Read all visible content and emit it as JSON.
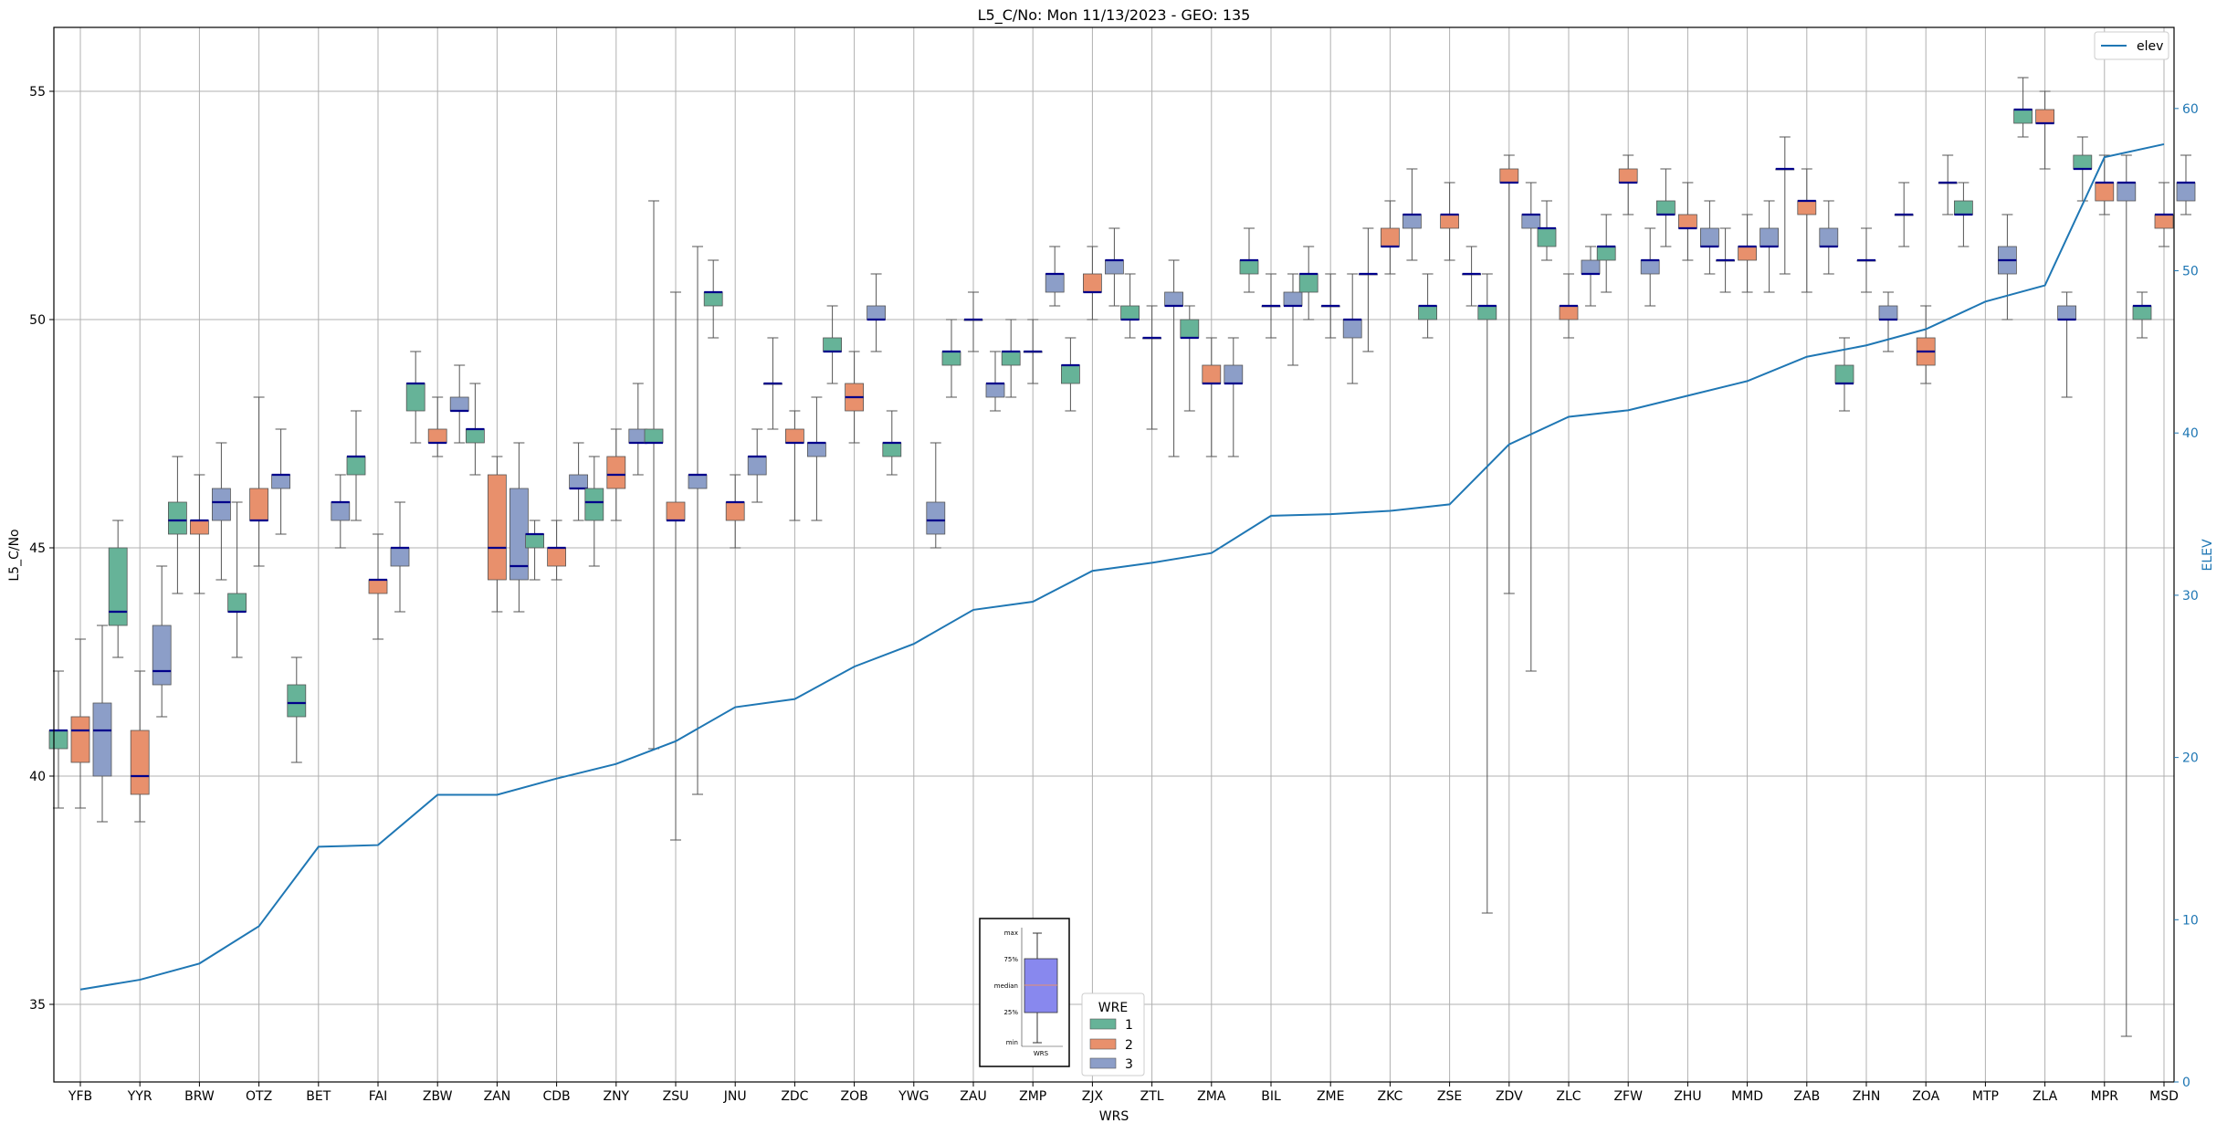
{
  "chart_data": {
    "type": "box",
    "title": "L5_C/No: Mon 11/13/2023 - GEO: 135",
    "xlabel": "WRS",
    "ylabel": "L5_C/No",
    "y2label": "ELEV",
    "ylim": [
      33.3,
      56.4
    ],
    "y2lim": [
      0,
      65
    ],
    "yticks": [
      35,
      40,
      45,
      50,
      55
    ],
    "y2ticks": [
      0,
      10,
      20,
      30,
      40,
      50,
      60
    ],
    "grid": true,
    "legend": {
      "title": "WRE",
      "placement": "lower-center",
      "entries": [
        "1",
        "2",
        "3"
      ]
    },
    "line_legend": {
      "label": "elev",
      "placement": "top-right"
    },
    "colors": {
      "wre1": "#66b398",
      "wre2": "#e8906c",
      "wre3": "#8c9ec8",
      "median": "#00008b",
      "elev": "#1f77b4",
      "grid": "#b0b0b0",
      "outlier_whisker": "#e8453c"
    },
    "inset_legend": {
      "labels": [
        "max",
        "75%",
        "median",
        "25%",
        "min"
      ],
      "xlabel": "WRS",
      "box_color": "#8888ee"
    },
    "categories": [
      "YFB",
      "YYR",
      "BRW",
      "OTZ",
      "BET",
      "FAI",
      "ZBW",
      "ZAN",
      "CDB",
      "ZNY",
      "ZSU",
      "JNU",
      "ZDC",
      "ZOB",
      "YWG",
      "ZAU",
      "ZMP",
      "ZJX",
      "ZTL",
      "ZMA",
      "BIL",
      "ZME",
      "ZKC",
      "ZSE",
      "ZDV",
      "ZLC",
      "ZFW",
      "ZHU",
      "MMD",
      "ZAB",
      "ZHN",
      "ZOA",
      "MTP",
      "ZLA",
      "MPR",
      "MSD"
    ],
    "elev": [
      5.7,
      6.3,
      7.3,
      9.6,
      14.5,
      14.6,
      17.7,
      17.7,
      18.7,
      19.6,
      21.0,
      23.1,
      23.6,
      25.6,
      27.0,
      29.1,
      29.6,
      31.5,
      32.0,
      32.6,
      34.9,
      35.0,
      35.2,
      35.6,
      39.3,
      41.0,
      41.4,
      42.3,
      43.2,
      44.7,
      45.4,
      46.4,
      48.1,
      49.1,
      57.0,
      57.8
    ],
    "boxes": [
      {
        "station": "YFB",
        "wre": 1,
        "min": 39.3,
        "q1": 40.6,
        "median": 41.0,
        "q3": 41.0,
        "max": 42.3
      },
      {
        "station": "YFB",
        "wre": 2,
        "min": 39.3,
        "q1": 40.3,
        "median": 41.0,
        "q3": 41.3,
        "max": 43.0
      },
      {
        "station": "YFB",
        "wre": 3,
        "min": 39.0,
        "q1": 40.0,
        "median": 41.0,
        "q3": 41.6,
        "max": 43.3
      },
      {
        "station": "YYR",
        "wre": 1,
        "min": 42.6,
        "q1": 43.3,
        "median": 43.6,
        "q3": 45.0,
        "max": 45.6
      },
      {
        "station": "YYR",
        "wre": 2,
        "min": 39.0,
        "q1": 39.6,
        "median": 40.0,
        "q3": 41.0,
        "max": 42.3
      },
      {
        "station": "YYR",
        "wre": 3,
        "min": 41.3,
        "q1": 42.0,
        "median": 42.3,
        "q3": 43.3,
        "max": 44.6
      },
      {
        "station": "BRW",
        "wre": 1,
        "min": 44.0,
        "q1": 45.3,
        "median": 45.6,
        "q3": 46.0,
        "max": 47.0
      },
      {
        "station": "BRW",
        "wre": 2,
        "min": 44.0,
        "q1": 45.3,
        "median": 45.6,
        "q3": 45.6,
        "max": 46.6
      },
      {
        "station": "BRW",
        "wre": 3,
        "min": 44.3,
        "q1": 45.6,
        "median": 46.0,
        "q3": 46.3,
        "max": 47.3
      },
      {
        "station": "OTZ",
        "wre": 1,
        "min": 42.6,
        "q1": 43.6,
        "median": 43.6,
        "q3": 44.0,
        "max": 46.0
      },
      {
        "station": "OTZ",
        "wre": 2,
        "min": 44.6,
        "q1": 45.6,
        "median": 45.6,
        "q3": 46.3,
        "max": 48.3
      },
      {
        "station": "OTZ",
        "wre": 3,
        "min": 45.3,
        "q1": 46.3,
        "median": 46.6,
        "q3": 46.6,
        "max": 47.6
      },
      {
        "station": "BET",
        "wre": 1,
        "min": 40.3,
        "q1": 41.3,
        "median": 41.6,
        "q3": 42.0,
        "max": 42.6
      },
      {
        "station": "BET",
        "wre": 3,
        "min": 45.0,
        "q1": 45.6,
        "median": 46.0,
        "q3": 46.0,
        "max": 46.6
      },
      {
        "station": "FAI",
        "wre": 1,
        "min": 45.6,
        "q1": 46.6,
        "median": 47.0,
        "q3": 47.0,
        "max": 48.0
      },
      {
        "station": "FAI",
        "wre": 2,
        "min": 43.0,
        "q1": 44.0,
        "median": 44.3,
        "q3": 44.3,
        "max": 45.3
      },
      {
        "station": "FAI",
        "wre": 3,
        "min": 43.6,
        "q1": 44.6,
        "median": 45.0,
        "q3": 45.0,
        "max": 46.0
      },
      {
        "station": "ZBW",
        "wre": 1,
        "min": 47.3,
        "q1": 48.0,
        "median": 48.6,
        "q3": 48.6,
        "max": 49.3
      },
      {
        "station": "ZBW",
        "wre": 2,
        "min": 47.0,
        "q1": 47.3,
        "median": 47.3,
        "q3": 47.6,
        "max": 48.3
      },
      {
        "station": "ZBW",
        "wre": 3,
        "min": 47.3,
        "q1": 48.0,
        "median": 48.0,
        "q3": 48.3,
        "max": 49.0
      },
      {
        "station": "ZAN",
        "wre": 1,
        "min": 46.6,
        "q1": 47.3,
        "median": 47.6,
        "q3": 47.6,
        "max": 48.6
      },
      {
        "station": "ZAN",
        "wre": 2,
        "min": 43.6,
        "q1": 44.3,
        "median": 45.0,
        "q3": 46.6,
        "max": 47.0
      },
      {
        "station": "ZAN",
        "wre": 3,
        "min": 43.6,
        "q1": 44.3,
        "median": 44.6,
        "q3": 46.3,
        "max": 47.3
      },
      {
        "station": "CDB",
        "wre": 1,
        "min": 44.3,
        "q1": 45.0,
        "median": 45.3,
        "q3": 45.3,
        "max": 45.6
      },
      {
        "station": "CDB",
        "wre": 2,
        "min": 44.3,
        "q1": 44.6,
        "median": 45.0,
        "q3": 45.0,
        "max": 45.6
      },
      {
        "station": "CDB",
        "wre": 3,
        "min": 45.6,
        "q1": 46.3,
        "median": 46.3,
        "q3": 46.6,
        "max": 47.3
      },
      {
        "station": "ZNY",
        "wre": 1,
        "min": 44.6,
        "q1": 45.6,
        "median": 46.0,
        "q3": 46.3,
        "max": 47.0
      },
      {
        "station": "ZNY",
        "wre": 2,
        "min": 45.6,
        "q1": 46.3,
        "median": 46.6,
        "q3": 47.0,
        "max": 47.6
      },
      {
        "station": "ZNY",
        "wre": 3,
        "min": 46.6,
        "q1": 47.3,
        "median": 47.3,
        "q3": 47.6,
        "max": 48.6
      },
      {
        "station": "ZSU",
        "wre": 1,
        "min": 40.6,
        "q1": 47.3,
        "median": 47.3,
        "q3": 47.6,
        "max": 52.6
      },
      {
        "station": "ZSU",
        "wre": 2,
        "min": 38.6,
        "q1": 45.6,
        "median": 45.6,
        "q3": 46.0,
        "max": 50.6
      },
      {
        "station": "ZSU",
        "wre": 3,
        "min": 39.6,
        "q1": 46.3,
        "median": 46.6,
        "q3": 46.6,
        "max": 51.6
      },
      {
        "station": "JNU",
        "wre": 1,
        "min": 49.6,
        "q1": 50.3,
        "median": 50.6,
        "q3": 50.6,
        "max": 51.3
      },
      {
        "station": "JNU",
        "wre": 2,
        "min": 45.0,
        "q1": 45.6,
        "median": 46.0,
        "q3": 46.0,
        "max": 46.6
      },
      {
        "station": "JNU",
        "wre": 3,
        "min": 46.0,
        "q1": 46.6,
        "median": 47.0,
        "q3": 47.0,
        "max": 47.6
      },
      {
        "station": "ZDC",
        "wre": 1,
        "min": 47.6,
        "q1": 48.6,
        "median": 48.6,
        "q3": 48.6,
        "max": 49.6
      },
      {
        "station": "ZDC",
        "wre": 2,
        "min": 45.6,
        "q1": 47.3,
        "median": 47.3,
        "q3": 47.6,
        "max": 48.0
      },
      {
        "station": "ZDC",
        "wre": 3,
        "min": 45.6,
        "q1": 47.0,
        "median": 47.3,
        "q3": 47.3,
        "max": 48.3
      },
      {
        "station": "ZOB",
        "wre": 1,
        "min": 48.6,
        "q1": 49.3,
        "median": 49.3,
        "q3": 49.6,
        "max": 50.3
      },
      {
        "station": "ZOB",
        "wre": 2,
        "min": 47.3,
        "q1": 48.0,
        "median": 48.3,
        "q3": 48.6,
        "max": 49.3
      },
      {
        "station": "ZOB",
        "wre": 3,
        "min": 49.3,
        "q1": 50.0,
        "median": 50.0,
        "q3": 50.3,
        "max": 51.0
      },
      {
        "station": "YWG",
        "wre": 1,
        "min": 46.6,
        "q1": 47.0,
        "median": 47.3,
        "q3": 47.3,
        "max": 48.0
      },
      {
        "station": "YWG",
        "wre": 3,
        "min": 45.0,
        "q1": 45.3,
        "median": 45.6,
        "q3": 46.0,
        "max": 47.3
      },
      {
        "station": "ZAU",
        "wre": 1,
        "min": 48.3,
        "q1": 49.0,
        "median": 49.3,
        "q3": 49.3,
        "max": 50.0
      },
      {
        "station": "ZAU",
        "wre": 2,
        "min": 49.3,
        "q1": 50.0,
        "median": 50.0,
        "q3": 50.0,
        "max": 50.6
      },
      {
        "station": "ZAU",
        "wre": 3,
        "min": 48.0,
        "q1": 48.3,
        "median": 48.6,
        "q3": 48.6,
        "max": 49.3
      },
      {
        "station": "ZMP",
        "wre": 1,
        "min": 48.3,
        "q1": 49.0,
        "median": 49.3,
        "q3": 49.3,
        "max": 50.0
      },
      {
        "station": "ZMP",
        "wre": 2,
        "min": 48.6,
        "q1": 49.3,
        "median": 49.3,
        "q3": 49.3,
        "max": 50.0
      },
      {
        "station": "ZMP",
        "wre": 3,
        "min": 50.3,
        "q1": 50.6,
        "median": 51.0,
        "q3": 51.0,
        "max": 51.6
      },
      {
        "station": "ZJX",
        "wre": 1,
        "min": 48.0,
        "q1": 48.6,
        "median": 49.0,
        "q3": 49.0,
        "max": 49.6
      },
      {
        "station": "ZJX",
        "wre": 2,
        "min": 50.0,
        "q1": 50.6,
        "median": 50.6,
        "q3": 51.0,
        "max": 51.6
      },
      {
        "station": "ZJX",
        "wre": 3,
        "min": 50.3,
        "q1": 51.0,
        "median": 51.3,
        "q3": 51.3,
        "max": 52.0
      },
      {
        "station": "ZTL",
        "wre": 1,
        "min": 49.6,
        "q1": 50.0,
        "median": 50.0,
        "q3": 50.3,
        "max": 51.0
      },
      {
        "station": "ZTL",
        "wre": 2,
        "min": 47.6,
        "q1": 49.6,
        "median": 49.6,
        "q3": 49.6,
        "max": 50.3
      },
      {
        "station": "ZTL",
        "wre": 3,
        "min": 47.0,
        "q1": 50.3,
        "median": 50.3,
        "q3": 50.6,
        "max": 51.3
      },
      {
        "station": "ZMA",
        "wre": 1,
        "min": 48.0,
        "q1": 49.6,
        "median": 49.6,
        "q3": 50.0,
        "max": 50.3
      },
      {
        "station": "ZMA",
        "wre": 2,
        "min": 47.0,
        "q1": 48.6,
        "median": 48.6,
        "q3": 49.0,
        "max": 49.6
      },
      {
        "station": "ZMA",
        "wre": 3,
        "min": 47.0,
        "q1": 48.6,
        "median": 48.6,
        "q3": 49.0,
        "max": 49.6
      },
      {
        "station": "BIL",
        "wre": 1,
        "min": 50.6,
        "q1": 51.0,
        "median": 51.3,
        "q3": 51.3,
        "max": 52.0
      },
      {
        "station": "BIL",
        "wre": 2,
        "min": 49.6,
        "q1": 50.3,
        "median": 50.3,
        "q3": 50.3,
        "max": 51.0
      },
      {
        "station": "BIL",
        "wre": 3,
        "min": 49.0,
        "q1": 50.3,
        "median": 50.3,
        "q3": 50.6,
        "max": 51.0
      },
      {
        "station": "ZME",
        "wre": 1,
        "min": 50.0,
        "q1": 50.6,
        "median": 51.0,
        "q3": 51.0,
        "max": 51.6
      },
      {
        "station": "ZME",
        "wre": 2,
        "min": 49.6,
        "q1": 50.3,
        "median": 50.3,
        "q3": 50.3,
        "max": 51.0
      },
      {
        "station": "ZME",
        "wre": 3,
        "min": 48.6,
        "q1": 49.6,
        "median": 50.0,
        "q3": 50.0,
        "max": 51.0
      },
      {
        "station": "ZKC",
        "wre": 1,
        "min": 49.3,
        "q1": 51.0,
        "median": 51.0,
        "q3": 51.0,
        "max": 52.0
      },
      {
        "station": "ZKC",
        "wre": 2,
        "min": 51.0,
        "q1": 51.6,
        "median": 51.6,
        "q3": 52.0,
        "max": 52.6
      },
      {
        "station": "ZKC",
        "wre": 3,
        "min": 51.3,
        "q1": 52.0,
        "median": 52.3,
        "q3": 52.3,
        "max": 53.3
      },
      {
        "station": "ZSE",
        "wre": 1,
        "min": 49.6,
        "q1": 50.0,
        "median": 50.3,
        "q3": 50.3,
        "max": 51.0
      },
      {
        "station": "ZSE",
        "wre": 2,
        "min": 51.3,
        "q1": 52.0,
        "median": 52.3,
        "q3": 52.3,
        "max": 53.0
      },
      {
        "station": "ZSE",
        "wre": 3,
        "min": 50.3,
        "q1": 51.0,
        "median": 51.0,
        "q3": 51.0,
        "max": 51.6
      },
      {
        "station": "ZDV",
        "wre": 1,
        "min": 37.0,
        "q1": 50.0,
        "median": 50.3,
        "q3": 50.3,
        "max": 51.0
      },
      {
        "station": "ZDV",
        "wre": 2,
        "min": 44.0,
        "q1": 53.0,
        "median": 53.0,
        "q3": 53.3,
        "max": 53.6
      },
      {
        "station": "ZDV",
        "wre": 3,
        "min": 42.3,
        "q1": 52.0,
        "median": 52.3,
        "q3": 52.3,
        "max": 53.0
      },
      {
        "station": "ZLC",
        "wre": 1,
        "min": 51.3,
        "q1": 51.6,
        "median": 52.0,
        "q3": 52.0,
        "max": 52.6
      },
      {
        "station": "ZLC",
        "wre": 2,
        "min": 49.6,
        "q1": 50.0,
        "median": 50.3,
        "q3": 50.3,
        "max": 51.0
      },
      {
        "station": "ZLC",
        "wre": 3,
        "min": 50.3,
        "q1": 51.0,
        "median": 51.0,
        "q3": 51.3,
        "max": 51.6
      },
      {
        "station": "ZFW",
        "wre": 1,
        "min": 50.6,
        "q1": 51.3,
        "median": 51.6,
        "q3": 51.6,
        "max": 52.3
      },
      {
        "station": "ZFW",
        "wre": 2,
        "min": 52.3,
        "q1": 53.0,
        "median": 53.0,
        "q3": 53.3,
        "max": 53.6
      },
      {
        "station": "ZFW",
        "wre": 3,
        "min": 50.3,
        "q1": 51.0,
        "median": 51.3,
        "q3": 51.3,
        "max": 52.0
      },
      {
        "station": "ZHU",
        "wre": 1,
        "min": 51.6,
        "q1": 52.3,
        "median": 52.3,
        "q3": 52.6,
        "max": 53.3
      },
      {
        "station": "ZHU",
        "wre": 2,
        "min": 51.3,
        "q1": 52.0,
        "median": 52.0,
        "q3": 52.3,
        "max": 53.0
      },
      {
        "station": "ZHU",
        "wre": 3,
        "min": 51.0,
        "q1": 51.6,
        "median": 51.6,
        "q3": 52.0,
        "max": 52.6
      },
      {
        "station": "MMD",
        "wre": 1,
        "min": 50.6,
        "q1": 51.3,
        "median": 51.3,
        "q3": 51.3,
        "max": 52.0
      },
      {
        "station": "MMD",
        "wre": 2,
        "min": 50.6,
        "q1": 51.3,
        "median": 51.6,
        "q3": 51.6,
        "max": 52.3
      },
      {
        "station": "MMD",
        "wre": 3,
        "min": 50.6,
        "q1": 51.6,
        "median": 51.6,
        "q3": 52.0,
        "max": 52.6
      },
      {
        "station": "ZAB",
        "wre": 1,
        "min": 51.0,
        "q1": 53.3,
        "median": 53.3,
        "q3": 53.3,
        "max": 54.0
      },
      {
        "station": "ZAB",
        "wre": 2,
        "min": 50.6,
        "q1": 52.3,
        "median": 52.6,
        "q3": 52.6,
        "max": 53.3
      },
      {
        "station": "ZAB",
        "wre": 3,
        "min": 51.0,
        "q1": 51.6,
        "median": 51.6,
        "q3": 52.0,
        "max": 52.6
      },
      {
        "station": "ZHN",
        "wre": 1,
        "min": 48.0,
        "q1": 48.6,
        "median": 48.6,
        "q3": 49.0,
        "max": 49.6
      },
      {
        "station": "ZHN",
        "wre": 2,
        "min": 50.6,
        "q1": 51.3,
        "median": 51.3,
        "q3": 51.3,
        "max": 52.0
      },
      {
        "station": "ZHN",
        "wre": 3,
        "min": 49.3,
        "q1": 50.0,
        "median": 50.0,
        "q3": 50.3,
        "max": 50.6
      },
      {
        "station": "ZOA",
        "wre": 1,
        "min": 51.6,
        "q1": 52.3,
        "median": 52.3,
        "q3": 52.3,
        "max": 53.0
      },
      {
        "station": "ZOA",
        "wre": 2,
        "min": 48.6,
        "q1": 49.0,
        "median": 49.3,
        "q3": 49.6,
        "max": 50.3
      },
      {
        "station": "ZOA",
        "wre": 3,
        "min": 52.3,
        "q1": 53.0,
        "median": 53.0,
        "q3": 53.0,
        "max": 53.6
      },
      {
        "station": "MTP",
        "wre": 1,
        "min": 51.6,
        "q1": 52.3,
        "median": 52.3,
        "q3": 52.6,
        "max": 53.0
      },
      {
        "station": "MTP",
        "wre": 3,
        "min": 50.0,
        "q1": 51.0,
        "median": 51.3,
        "q3": 51.6,
        "max": 52.3
      },
      {
        "station": "ZLA",
        "wre": 1,
        "min": 54.0,
        "q1": 54.3,
        "median": 54.6,
        "q3": 54.6,
        "max": 55.3
      },
      {
        "station": "ZLA",
        "wre": 2,
        "min": 53.3,
        "q1": 54.3,
        "median": 54.3,
        "q3": 54.6,
        "max": 55.0
      },
      {
        "station": "ZLA",
        "wre": 3,
        "min": 48.3,
        "q1": 50.0,
        "median": 50.0,
        "q3": 50.3,
        "max": 50.6
      },
      {
        "station": "MPR",
        "wre": 1,
        "min": 52.6,
        "q1": 53.3,
        "median": 53.3,
        "q3": 53.6,
        "max": 54.0
      },
      {
        "station": "MPR",
        "wre": 2,
        "min": 52.3,
        "q1": 52.6,
        "median": 53.0,
        "q3": 53.0,
        "max": 53.6
      },
      {
        "station": "MPR",
        "wre": 3,
        "min": 34.3,
        "q1": 52.6,
        "median": 53.0,
        "q3": 53.0,
        "max": 53.6
      },
      {
        "station": "MSD",
        "wre": 1,
        "min": 49.6,
        "q1": 50.0,
        "median": 50.3,
        "q3": 50.3,
        "max": 50.6
      },
      {
        "station": "MSD",
        "wre": 2,
        "min": 51.6,
        "q1": 52.0,
        "median": 52.3,
        "q3": 52.3,
        "max": 53.0
      },
      {
        "station": "MSD",
        "wre": 3,
        "min": 52.3,
        "q1": 52.6,
        "median": 53.0,
        "q3": 53.0,
        "max": 53.6
      }
    ]
  }
}
